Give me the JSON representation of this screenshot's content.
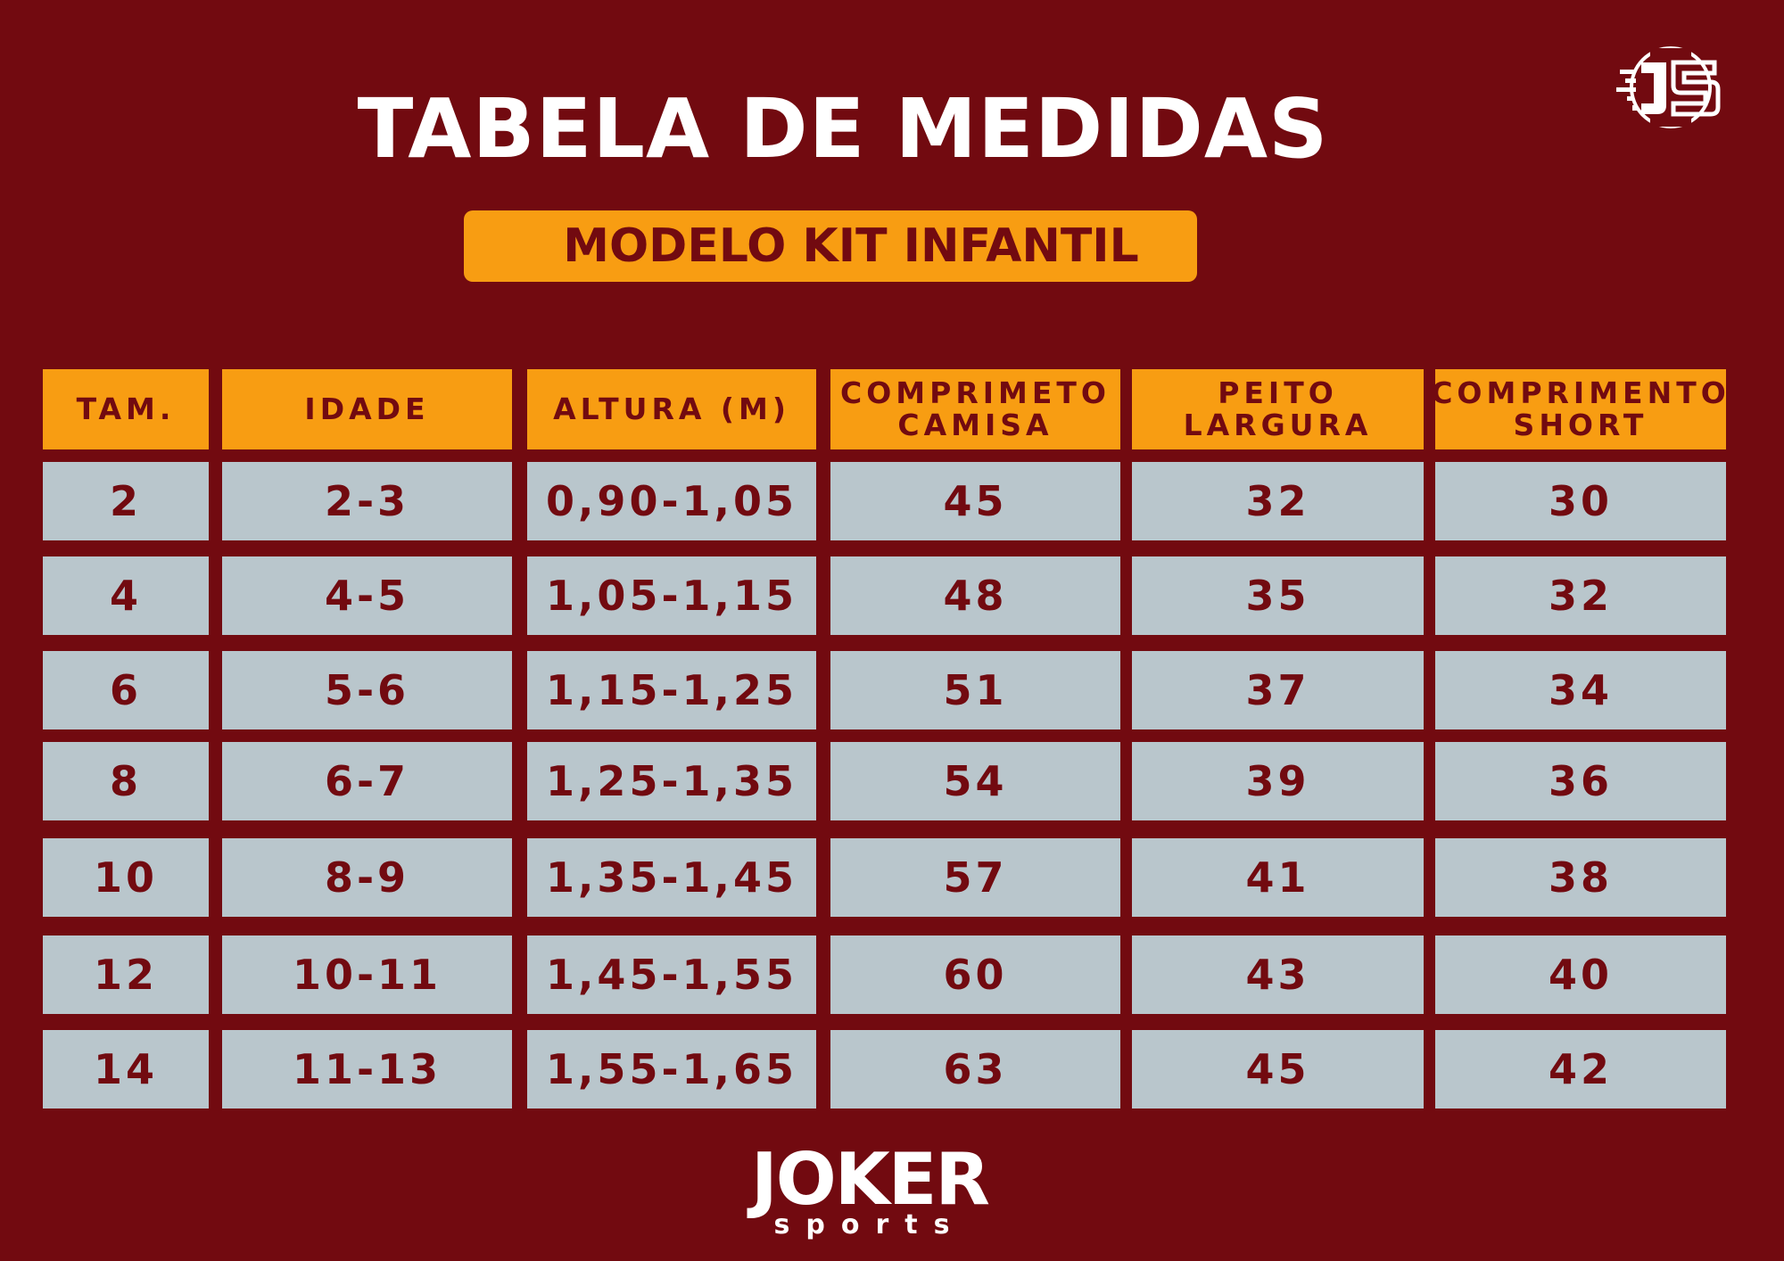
{
  "title": "TABELA DE MEDIDAS",
  "subtitle": "MODELO KIT INFANTIL",
  "colors": {
    "background": "#720a10",
    "accent": "#f89d12",
    "cell": "#b9c6cc",
    "text": "#720a10"
  },
  "top_logo": {
    "icon": "js-logo-icon",
    "text": "JS"
  },
  "table": {
    "headers": [
      "TAM.",
      "IDADE",
      "ALTURA (M)",
      "COMPRIMETO\nCAMISA",
      "PEITO\nLARGURA",
      "COMPRIMENTO\nSHORT"
    ],
    "rows": [
      [
        "2",
        "2-3",
        "0,90-1,05",
        "45",
        "32",
        "30"
      ],
      [
        "4",
        "4-5",
        "1,05-1,15",
        "48",
        "35",
        "32"
      ],
      [
        "6",
        "5-6",
        "1,15-1,25",
        "51",
        "37",
        "34"
      ],
      [
        "8",
        "6-7",
        "1,25-1,35",
        "54",
        "39",
        "36"
      ],
      [
        "10",
        "8-9",
        "1,35-1,45",
        "57",
        "41",
        "38"
      ],
      [
        "12",
        "10-11",
        "1,45-1,55",
        "60",
        "43",
        "40"
      ],
      [
        "14",
        "11-13",
        "1,55-1,65",
        "63",
        "45",
        "42"
      ]
    ]
  },
  "brand": {
    "name": "JOKER",
    "tagline": "sports"
  }
}
